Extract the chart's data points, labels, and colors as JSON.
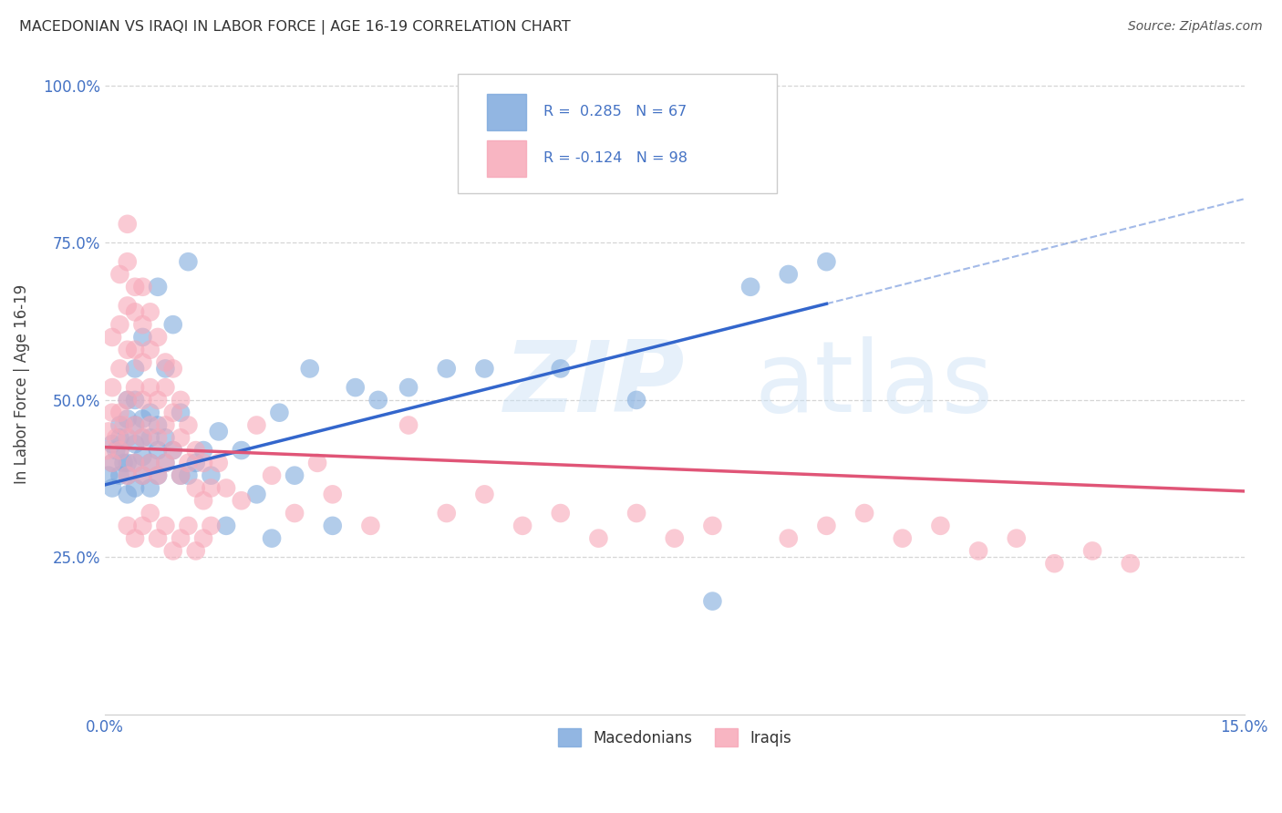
{
  "title": "MACEDONIAN VS IRAQI IN LABOR FORCE | AGE 16-19 CORRELATION CHART",
  "source": "Source: ZipAtlas.com",
  "ylabel_label": "In Labor Force | Age 16-19",
  "macedonian_color": "#7faadd",
  "iraqi_color": "#f7a8b8",
  "macedonian_line_color": "#3366cc",
  "iraqi_line_color": "#e05577",
  "r_mac": 0.285,
  "n_mac": 67,
  "r_irq": -0.124,
  "n_irq": 98,
  "xlim": [
    0.0,
    0.15
  ],
  "ylim": [
    0.0,
    1.05
  ],
  "tick_color": "#4472c4",
  "background_color": "#ffffff",
  "grid_color": "#cccccc",
  "mac_line_x0": 0.0,
  "mac_line_y0": 0.365,
  "mac_line_x1": 0.15,
  "mac_line_y1": 0.82,
  "mac_line_solid_end": 0.095,
  "irq_line_x0": 0.0,
  "irq_line_y0": 0.425,
  "irq_line_x1": 0.15,
  "irq_line_y1": 0.355,
  "mac_x": [
    0.0005,
    0.001,
    0.001,
    0.001,
    0.0015,
    0.002,
    0.002,
    0.002,
    0.002,
    0.0025,
    0.003,
    0.003,
    0.003,
    0.003,
    0.003,
    0.003,
    0.004,
    0.004,
    0.004,
    0.004,
    0.004,
    0.004,
    0.005,
    0.005,
    0.005,
    0.005,
    0.005,
    0.006,
    0.006,
    0.006,
    0.006,
    0.007,
    0.007,
    0.007,
    0.007,
    0.008,
    0.008,
    0.008,
    0.009,
    0.009,
    0.01,
    0.01,
    0.011,
    0.011,
    0.012,
    0.013,
    0.014,
    0.015,
    0.016,
    0.018,
    0.02,
    0.022,
    0.023,
    0.025,
    0.027,
    0.03,
    0.033,
    0.036,
    0.04,
    0.045,
    0.05,
    0.06,
    0.07,
    0.08,
    0.085,
    0.09,
    0.095
  ],
  "mac_y": [
    0.38,
    0.4,
    0.43,
    0.36,
    0.42,
    0.38,
    0.44,
    0.42,
    0.46,
    0.4,
    0.35,
    0.38,
    0.4,
    0.44,
    0.47,
    0.5,
    0.36,
    0.4,
    0.43,
    0.46,
    0.5,
    0.55,
    0.38,
    0.41,
    0.44,
    0.47,
    0.6,
    0.36,
    0.4,
    0.44,
    0.48,
    0.38,
    0.42,
    0.46,
    0.68,
    0.4,
    0.44,
    0.55,
    0.42,
    0.62,
    0.38,
    0.48,
    0.38,
    0.72,
    0.4,
    0.42,
    0.38,
    0.45,
    0.3,
    0.42,
    0.35,
    0.28,
    0.48,
    0.38,
    0.55,
    0.3,
    0.52,
    0.5,
    0.52,
    0.55,
    0.55,
    0.55,
    0.5,
    0.18,
    0.68,
    0.7,
    0.72
  ],
  "irq_x": [
    0.0003,
    0.0005,
    0.001,
    0.001,
    0.001,
    0.001,
    0.0015,
    0.002,
    0.002,
    0.002,
    0.002,
    0.002,
    0.0025,
    0.003,
    0.003,
    0.003,
    0.003,
    0.003,
    0.003,
    0.003,
    0.004,
    0.004,
    0.004,
    0.004,
    0.004,
    0.004,
    0.005,
    0.005,
    0.005,
    0.005,
    0.005,
    0.005,
    0.006,
    0.006,
    0.006,
    0.006,
    0.006,
    0.007,
    0.007,
    0.007,
    0.007,
    0.008,
    0.008,
    0.008,
    0.008,
    0.009,
    0.009,
    0.009,
    0.01,
    0.01,
    0.01,
    0.011,
    0.011,
    0.012,
    0.012,
    0.013,
    0.013,
    0.014,
    0.015,
    0.016,
    0.018,
    0.02,
    0.022,
    0.025,
    0.028,
    0.03,
    0.035,
    0.04,
    0.045,
    0.05,
    0.055,
    0.06,
    0.065,
    0.07,
    0.075,
    0.08,
    0.09,
    0.095,
    0.1,
    0.105,
    0.11,
    0.115,
    0.12,
    0.125,
    0.13,
    0.135,
    0.003,
    0.004,
    0.005,
    0.006,
    0.007,
    0.008,
    0.009,
    0.01,
    0.011,
    0.012,
    0.013,
    0.014
  ],
  "irq_y": [
    0.42,
    0.45,
    0.4,
    0.48,
    0.52,
    0.6,
    0.44,
    0.42,
    0.48,
    0.55,
    0.62,
    0.7,
    0.46,
    0.38,
    0.44,
    0.5,
    0.58,
    0.65,
    0.72,
    0.78,
    0.4,
    0.46,
    0.52,
    0.58,
    0.64,
    0.68,
    0.38,
    0.44,
    0.5,
    0.56,
    0.62,
    0.68,
    0.4,
    0.46,
    0.52,
    0.58,
    0.64,
    0.38,
    0.44,
    0.5,
    0.6,
    0.4,
    0.46,
    0.52,
    0.56,
    0.42,
    0.48,
    0.55,
    0.38,
    0.44,
    0.5,
    0.4,
    0.46,
    0.36,
    0.42,
    0.34,
    0.4,
    0.36,
    0.4,
    0.36,
    0.34,
    0.46,
    0.38,
    0.32,
    0.4,
    0.35,
    0.3,
    0.46,
    0.32,
    0.35,
    0.3,
    0.32,
    0.28,
    0.32,
    0.28,
    0.3,
    0.28,
    0.3,
    0.32,
    0.28,
    0.3,
    0.26,
    0.28,
    0.24,
    0.26,
    0.24,
    0.3,
    0.28,
    0.3,
    0.32,
    0.28,
    0.3,
    0.26,
    0.28,
    0.3,
    0.26,
    0.28,
    0.3
  ]
}
